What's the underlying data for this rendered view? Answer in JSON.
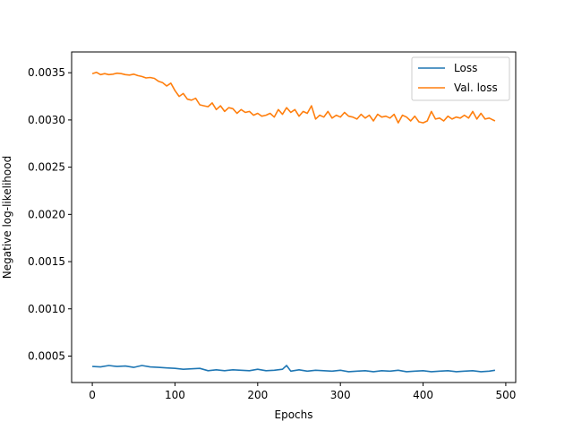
{
  "chart_data": {
    "type": "line",
    "xlabel": "Epochs",
    "ylabel": "Negative log-likelihood",
    "xlim": [
      -25,
      512
    ],
    "ylim": [
      0.00022,
      0.00372
    ],
    "xticks": [
      0,
      100,
      200,
      300,
      400,
      500
    ],
    "xtick_labels": [
      "0",
      "100",
      "200",
      "300",
      "400",
      "500"
    ],
    "yticks": [
      0.0005,
      0.001,
      0.0015,
      0.002,
      0.0025,
      0.003,
      0.0035
    ],
    "ytick_labels": [
      "0.0005",
      "0.0010",
      "0.0015",
      "0.0020",
      "0.0025",
      "0.0030",
      "0.0035"
    ],
    "grid": false,
    "legend_position": "top-right",
    "series": [
      {
        "name": "Loss",
        "color": "#1f77b4",
        "x": [
          0,
          10,
          20,
          30,
          40,
          50,
          60,
          70,
          80,
          90,
          100,
          110,
          120,
          130,
          140,
          150,
          160,
          170,
          180,
          190,
          200,
          210,
          220,
          230,
          235,
          240,
          250,
          260,
          270,
          280,
          290,
          300,
          310,
          320,
          330,
          340,
          350,
          360,
          370,
          380,
          390,
          400,
          410,
          420,
          430,
          440,
          450,
          460,
          470,
          480,
          487
        ],
        "y": [
          0.00039,
          0.000385,
          0.0004,
          0.00039,
          0.000395,
          0.00038,
          0.0004,
          0.000385,
          0.00038,
          0.000375,
          0.00037,
          0.00036,
          0.000365,
          0.00037,
          0.000345,
          0.000355,
          0.000345,
          0.000355,
          0.00035,
          0.000345,
          0.00036,
          0.000345,
          0.00035,
          0.00036,
          0.0004,
          0.00034,
          0.000355,
          0.00034,
          0.00035,
          0.000345,
          0.00034,
          0.00035,
          0.000335,
          0.00034,
          0.000345,
          0.000335,
          0.000345,
          0.00034,
          0.00035,
          0.000335,
          0.00034,
          0.000345,
          0.000335,
          0.00034,
          0.000345,
          0.000335,
          0.00034,
          0.000345,
          0.000335,
          0.00034,
          0.00035
        ]
      },
      {
        "name": "Val. loss",
        "color": "#ff7f0e",
        "x": [
          0,
          5,
          10,
          15,
          20,
          25,
          30,
          35,
          40,
          45,
          50,
          55,
          60,
          65,
          70,
          75,
          80,
          85,
          90,
          95,
          100,
          105,
          110,
          115,
          120,
          125,
          130,
          135,
          140,
          145,
          150,
          155,
          160,
          165,
          170,
          175,
          180,
          185,
          190,
          195,
          200,
          205,
          210,
          215,
          220,
          225,
          230,
          235,
          240,
          245,
          250,
          255,
          260,
          265,
          270,
          275,
          280,
          285,
          290,
          295,
          300,
          305,
          310,
          315,
          320,
          325,
          330,
          335,
          340,
          345,
          350,
          355,
          360,
          365,
          370,
          375,
          380,
          385,
          390,
          395,
          400,
          405,
          410,
          415,
          420,
          425,
          430,
          435,
          440,
          445,
          450,
          455,
          460,
          465,
          470,
          475,
          480,
          487
        ],
        "y": [
          0.00349,
          0.003505,
          0.00348,
          0.00349,
          0.00348,
          0.003485,
          0.003495,
          0.00349,
          0.00348,
          0.003475,
          0.003485,
          0.00347,
          0.00346,
          0.003445,
          0.00345,
          0.00344,
          0.00341,
          0.003395,
          0.00336,
          0.00339,
          0.00331,
          0.00325,
          0.00328,
          0.00322,
          0.00321,
          0.00323,
          0.00316,
          0.00315,
          0.00314,
          0.00318,
          0.00311,
          0.00315,
          0.00309,
          0.00313,
          0.00312,
          0.00307,
          0.00311,
          0.00308,
          0.00309,
          0.00305,
          0.00307,
          0.00304,
          0.00305,
          0.00307,
          0.00303,
          0.00311,
          0.00306,
          0.00313,
          0.00308,
          0.00311,
          0.00304,
          0.00309,
          0.00307,
          0.00315,
          0.00301,
          0.00305,
          0.00303,
          0.00309,
          0.00302,
          0.00305,
          0.00303,
          0.00308,
          0.00304,
          0.00303,
          0.00301,
          0.00306,
          0.00302,
          0.00305,
          0.00299,
          0.00306,
          0.00303,
          0.00304,
          0.00302,
          0.00306,
          0.00297,
          0.00305,
          0.00303,
          0.00299,
          0.00304,
          0.00298,
          0.00297,
          0.00299,
          0.00309,
          0.00301,
          0.00302,
          0.00299,
          0.00304,
          0.00301,
          0.00303,
          0.00302,
          0.00305,
          0.00302,
          0.00309,
          0.00301,
          0.00307,
          0.00301,
          0.00302,
          0.00299
        ]
      }
    ]
  }
}
